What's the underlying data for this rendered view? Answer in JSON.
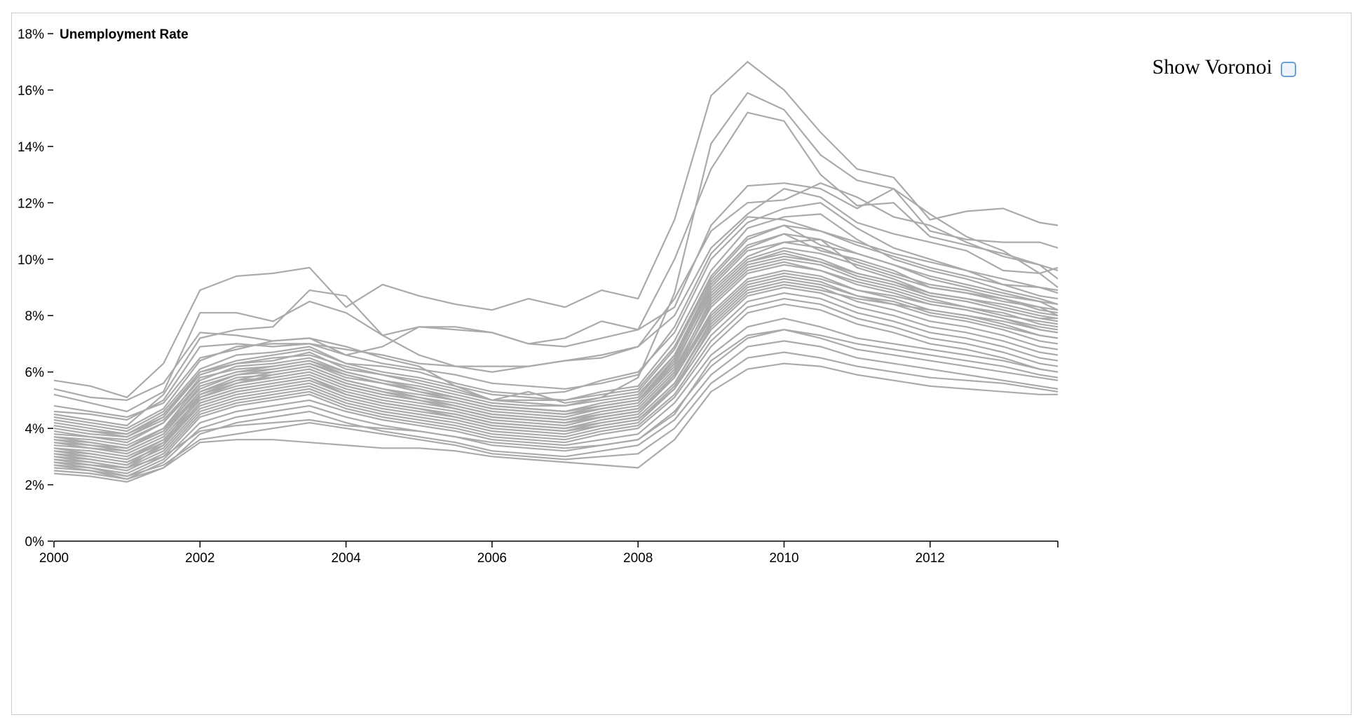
{
  "colors": {
    "line": "#aaaaaa",
    "axis": "#000000",
    "frame": "#cccccc",
    "checkbox_border": "#6a9fd8"
  },
  "controls": {
    "voronoi_label": "Show Voronoi",
    "voronoi_checked": false
  },
  "chart_data": {
    "type": "line",
    "title": "Unemployment Rate",
    "xlabel": "",
    "ylabel": "Unemployment Rate",
    "xlim": [
      2000,
      2013.75
    ],
    "ylim": [
      0,
      18
    ],
    "x_ticks": [
      "2000",
      "2002",
      "2004",
      "2006",
      "2008",
      "2010",
      "2012"
    ],
    "y_ticks": [
      "0%",
      "2%",
      "4%",
      "6%",
      "8%",
      "10%",
      "12%",
      "14%",
      "16%",
      "18%"
    ],
    "grid": false,
    "legend": "none",
    "x": [
      2000.0,
      2000.5,
      2001.0,
      2001.5,
      2002.0,
      2002.5,
      2003.0,
      2003.5,
      2004.0,
      2004.5,
      2005.0,
      2005.5,
      2006.0,
      2006.5,
      2007.0,
      2007.5,
      2008.0,
      2008.5,
      2009.0,
      2009.5,
      2010.0,
      2010.5,
      2011.0,
      2011.5,
      2012.0,
      2012.5,
      2013.0,
      2013.5,
      2013.75
    ],
    "series": [
      {
        "values": [
          5.7,
          5.5,
          5.1,
          6.3,
          8.9,
          9.4,
          9.5,
          9.7,
          8.3,
          9.1,
          8.7,
          8.4,
          8.2,
          8.6,
          8.3,
          8.9,
          8.6,
          11.4,
          15.8,
          17.0,
          16.0,
          14.5,
          13.2,
          12.9,
          11.4,
          11.7,
          11.8,
          11.3,
          11.2
        ]
      },
      {
        "values": [
          5.4,
          5.1,
          5.0,
          5.6,
          7.4,
          7.3,
          7.1,
          7.2,
          6.9,
          6.5,
          6.2,
          5.5,
          5.0,
          5.3,
          4.9,
          5.1,
          5.8,
          8.8,
          14.1,
          15.9,
          15.3,
          13.7,
          12.8,
          12.5,
          11.0,
          10.7,
          10.6,
          10.6,
          10.4
        ]
      },
      {
        "values": [
          5.2,
          4.9,
          4.6,
          5.3,
          8.1,
          8.1,
          7.8,
          8.5,
          8.1,
          7.3,
          7.6,
          7.5,
          7.4,
          7.0,
          7.2,
          7.8,
          7.5,
          10.0,
          13.2,
          15.2,
          14.9,
          13.0,
          11.9,
          12.0,
          10.8,
          10.5,
          10.2,
          9.8,
          9.6
        ]
      },
      {
        "values": [
          4.8,
          4.6,
          4.4,
          4.9,
          6.5,
          6.8,
          7.1,
          7.2,
          6.6,
          6.9,
          7.6,
          7.6,
          7.4,
          7.0,
          6.9,
          7.2,
          7.5,
          8.3,
          11.2,
          12.6,
          12.7,
          12.5,
          11.8,
          12.5,
          11.6,
          10.8,
          10.3,
          9.5,
          9.7
        ]
      },
      {
        "values": [
          4.5,
          4.3,
          4.1,
          5.2,
          7.2,
          7.5,
          7.6,
          8.9,
          8.7,
          7.3,
          6.6,
          6.2,
          6.0,
          6.2,
          6.4,
          6.6,
          6.9,
          8.6,
          11.0,
          12.0,
          12.1,
          12.7,
          12.2,
          11.5,
          11.2,
          10.6,
          10.1,
          9.8,
          9.3
        ]
      },
      {
        "values": [
          4.4,
          4.2,
          4.0,
          4.7,
          6.4,
          6.9,
          7.0,
          7.0,
          6.8,
          6.6,
          6.3,
          6.2,
          6.2,
          6.2,
          6.4,
          6.5,
          6.9,
          8.0,
          10.4,
          11.6,
          12.5,
          12.2,
          11.3,
          10.9,
          10.6,
          10.3,
          9.6,
          9.5,
          9.0
        ]
      },
      {
        "values": [
          4.3,
          4.1,
          3.9,
          4.6,
          6.1,
          6.6,
          6.7,
          6.9,
          6.3,
          6.2,
          6.0,
          5.6,
          5.3,
          5.2,
          5.3,
          5.7,
          6.0,
          7.4,
          10.0,
          11.3,
          11.8,
          12.0,
          11.1,
          10.4,
          10.0,
          9.6,
          9.1,
          9.0,
          8.8
        ]
      },
      {
        "values": [
          4.1,
          3.9,
          3.8,
          4.4,
          5.9,
          6.3,
          6.4,
          6.7,
          6.1,
          5.9,
          5.7,
          5.4,
          5.0,
          5.0,
          5.0,
          5.3,
          5.5,
          7.1,
          9.6,
          11.1,
          11.5,
          11.6,
          10.7,
          10.0,
          9.6,
          9.3,
          8.9,
          8.6,
          8.4
        ]
      },
      {
        "values": [
          4.0,
          3.8,
          3.7,
          4.3,
          5.7,
          6.2,
          6.3,
          6.5,
          6.0,
          5.7,
          5.5,
          5.2,
          4.9,
          4.8,
          4.8,
          5.1,
          5.3,
          6.8,
          9.3,
          10.7,
          11.2,
          10.5,
          10.2,
          9.8,
          9.3,
          9.0,
          8.7,
          8.5,
          8.2
        ]
      },
      {
        "values": [
          3.8,
          3.7,
          3.5,
          4.2,
          5.6,
          6.0,
          6.1,
          6.3,
          5.8,
          5.6,
          5.3,
          5.1,
          4.8,
          4.7,
          4.6,
          4.9,
          5.1,
          6.6,
          9.1,
          10.4,
          10.9,
          10.3,
          10.0,
          9.6,
          9.0,
          8.8,
          8.5,
          8.3,
          8.0
        ]
      },
      {
        "values": [
          3.7,
          3.6,
          3.4,
          4.0,
          5.4,
          5.9,
          6.0,
          6.2,
          5.7,
          5.4,
          5.2,
          5.0,
          4.7,
          4.6,
          4.5,
          4.8,
          5.0,
          6.4,
          8.9,
          10.1,
          10.6,
          10.7,
          9.7,
          9.3,
          8.8,
          8.6,
          8.3,
          8.0,
          7.9
        ]
      },
      {
        "values": [
          3.6,
          3.5,
          3.3,
          3.9,
          5.3,
          5.8,
          5.9,
          6.1,
          5.6,
          5.3,
          5.1,
          4.9,
          4.6,
          4.5,
          4.4,
          4.7,
          4.9,
          6.3,
          8.7,
          9.9,
          10.3,
          10.0,
          9.5,
          9.2,
          8.7,
          8.5,
          8.2,
          7.9,
          7.8
        ]
      },
      {
        "values": [
          3.5,
          3.4,
          3.2,
          3.8,
          5.2,
          5.6,
          5.8,
          6.0,
          5.5,
          5.2,
          5.0,
          4.8,
          4.5,
          4.4,
          4.3,
          4.6,
          4.8,
          6.1,
          8.5,
          9.7,
          10.0,
          9.8,
          9.3,
          9.0,
          8.6,
          8.3,
          8.1,
          7.7,
          7.6
        ]
      },
      {
        "values": [
          3.4,
          3.3,
          3.1,
          3.7,
          5.1,
          5.5,
          5.7,
          5.9,
          5.4,
          5.1,
          4.9,
          4.7,
          4.4,
          4.3,
          4.2,
          4.5,
          4.7,
          6.0,
          8.3,
          9.5,
          9.8,
          9.6,
          9.1,
          8.8,
          8.4,
          8.2,
          7.9,
          7.5,
          7.4
        ]
      },
      {
        "values": [
          3.3,
          3.2,
          3.0,
          3.6,
          5.0,
          5.4,
          5.6,
          5.8,
          5.3,
          5.0,
          4.8,
          4.6,
          4.3,
          4.2,
          4.1,
          4.4,
          4.6,
          5.9,
          8.1,
          9.3,
          9.6,
          9.4,
          8.9,
          8.6,
          8.2,
          8.0,
          7.7,
          7.3,
          7.2
        ]
      },
      {
        "values": [
          3.2,
          3.1,
          2.9,
          3.5,
          4.9,
          5.3,
          5.5,
          5.7,
          5.2,
          4.9,
          4.7,
          4.5,
          4.2,
          4.1,
          4.0,
          4.3,
          4.5,
          5.8,
          7.9,
          9.1,
          9.4,
          9.2,
          8.7,
          8.4,
          8.0,
          7.8,
          7.5,
          7.1,
          7.0
        ]
      },
      {
        "values": [
          3.1,
          3.0,
          2.8,
          3.4,
          4.8,
          5.2,
          5.4,
          5.6,
          5.1,
          4.8,
          4.6,
          4.4,
          4.1,
          4.0,
          3.9,
          4.2,
          4.4,
          5.6,
          7.7,
          8.9,
          9.2,
          9.0,
          8.5,
          8.2,
          7.8,
          7.6,
          7.3,
          6.9,
          6.8
        ]
      },
      {
        "values": [
          3.0,
          2.9,
          2.7,
          3.3,
          4.7,
          5.1,
          5.3,
          5.5,
          5.0,
          4.7,
          4.5,
          4.3,
          4.0,
          3.9,
          3.8,
          4.1,
          4.3,
          5.5,
          7.5,
          8.7,
          9.0,
          8.8,
          8.3,
          8.0,
          7.6,
          7.4,
          7.1,
          6.7,
          6.6
        ]
      },
      {
        "values": [
          2.9,
          2.8,
          2.6,
          3.2,
          4.6,
          5.0,
          5.2,
          5.4,
          4.9,
          4.6,
          4.4,
          4.2,
          3.9,
          3.8,
          3.7,
          4.0,
          4.2,
          5.4,
          7.3,
          8.5,
          8.8,
          8.6,
          8.1,
          7.8,
          7.4,
          7.2,
          6.9,
          6.5,
          6.4
        ]
      },
      {
        "values": [
          2.8,
          2.7,
          2.5,
          3.1,
          4.5,
          4.9,
          5.1,
          5.3,
          4.8,
          4.5,
          4.3,
          4.1,
          3.8,
          3.7,
          3.6,
          3.9,
          4.1,
          5.2,
          7.1,
          8.3,
          8.6,
          8.4,
          7.9,
          7.6,
          7.2,
          7.0,
          6.7,
          6.3,
          6.2
        ]
      },
      {
        "values": [
          2.7,
          2.6,
          2.4,
          3.0,
          4.4,
          4.8,
          5.0,
          5.2,
          4.7,
          4.4,
          4.2,
          4.0,
          3.7,
          3.6,
          3.5,
          3.8,
          4.0,
          5.1,
          6.9,
          8.1,
          8.4,
          8.2,
          7.7,
          7.4,
          7.0,
          6.8,
          6.5,
          6.1,
          6.0
        ]
      },
      {
        "values": [
          2.9,
          2.7,
          2.6,
          3.4,
          5.1,
          5.6,
          5.9,
          6.1,
          5.6,
          5.3,
          5.0,
          4.7,
          4.4,
          4.3,
          4.2,
          4.4,
          4.6,
          5.9,
          8.4,
          9.6,
          9.9,
          9.6,
          9.2,
          8.9,
          8.5,
          8.3,
          8.0,
          7.8,
          7.7
        ]
      },
      {
        "values": [
          3.1,
          2.9,
          2.7,
          3.5,
          5.2,
          5.7,
          6.0,
          6.2,
          5.7,
          5.4,
          5.1,
          4.8,
          4.5,
          4.4,
          4.3,
          4.5,
          4.7,
          6.0,
          8.6,
          9.8,
          10.1,
          9.9,
          9.4,
          9.1,
          8.7,
          8.5,
          8.2,
          7.9,
          7.9
        ]
      },
      {
        "values": [
          3.6,
          3.4,
          3.3,
          3.9,
          5.5,
          5.9,
          6.1,
          6.3,
          5.9,
          5.6,
          5.3,
          5.0,
          4.7,
          4.6,
          4.5,
          4.7,
          4.9,
          6.2,
          8.8,
          10.0,
          10.4,
          10.2,
          9.8,
          9.4,
          9.0,
          8.8,
          8.6,
          8.2,
          8.1
        ]
      },
      {
        "values": [
          4.2,
          4.0,
          3.8,
          4.5,
          6.0,
          6.4,
          6.6,
          6.8,
          6.3,
          6.0,
          5.8,
          5.5,
          5.2,
          5.1,
          5.0,
          5.2,
          5.4,
          6.9,
          9.4,
          10.8,
          11.2,
          11.0,
          10.5,
          10.1,
          9.7,
          9.4,
          9.1,
          8.7,
          8.6
        ]
      },
      {
        "values": [
          3.9,
          3.7,
          3.6,
          4.2,
          5.8,
          6.1,
          6.2,
          6.4,
          6.0,
          5.7,
          5.4,
          5.1,
          4.8,
          4.7,
          4.6,
          4.8,
          5.0,
          6.5,
          9.0,
          10.3,
          10.6,
          10.4,
          9.9,
          9.5,
          9.1,
          8.9,
          8.6,
          8.3,
          8.2
        ]
      },
      {
        "values": [
          2.6,
          2.5,
          2.3,
          2.9,
          4.2,
          4.6,
          4.8,
          5.0,
          4.6,
          4.3,
          4.1,
          3.9,
          3.6,
          3.5,
          3.4,
          3.6,
          3.8,
          4.9,
          6.6,
          7.6,
          7.9,
          7.6,
          7.2,
          7.0,
          6.8,
          6.6,
          6.4,
          6.1,
          6.0
        ]
      },
      {
        "values": [
          2.5,
          2.4,
          2.2,
          2.8,
          4.0,
          4.4,
          4.6,
          4.8,
          4.4,
          4.1,
          3.9,
          3.7,
          3.4,
          3.3,
          3.2,
          3.4,
          3.6,
          4.6,
          6.2,
          7.2,
          7.5,
          7.2,
          6.8,
          6.6,
          6.4,
          6.2,
          6.0,
          5.8,
          5.7
        ]
      },
      {
        "values": [
          2.4,
          2.3,
          2.1,
          2.6,
          3.8,
          4.2,
          4.4,
          4.6,
          4.2,
          3.9,
          3.7,
          3.5,
          3.2,
          3.1,
          3.0,
          3.2,
          3.4,
          4.3,
          5.9,
          6.9,
          7.1,
          6.9,
          6.5,
          6.3,
          6.1,
          5.9,
          5.7,
          5.5,
          5.4
        ]
      },
      {
        "values": [
          2.8,
          2.6,
          2.3,
          2.7,
          3.6,
          3.8,
          4.0,
          4.2,
          4.0,
          3.8,
          3.6,
          3.4,
          3.1,
          3.0,
          2.9,
          3.0,
          3.1,
          4.0,
          5.6,
          6.5,
          6.7,
          6.5,
          6.2,
          6.0,
          5.8,
          5.7,
          5.6,
          5.4,
          5.3
        ]
      },
      {
        "values": [
          2.7,
          2.5,
          2.2,
          2.6,
          3.5,
          3.6,
          3.6,
          3.5,
          3.4,
          3.3,
          3.3,
          3.2,
          3.0,
          2.9,
          2.8,
          2.7,
          2.6,
          3.6,
          5.3,
          6.1,
          6.3,
          6.2,
          5.9,
          5.7,
          5.5,
          5.4,
          5.3,
          5.2,
          5.2
        ]
      },
      {
        "values": [
          3.0,
          2.8,
          2.6,
          3.0,
          3.9,
          4.1,
          4.2,
          4.3,
          4.1,
          4.0,
          3.9,
          3.7,
          3.5,
          3.4,
          3.3,
          3.4,
          3.6,
          4.5,
          6.4,
          7.3,
          7.5,
          7.3,
          7.0,
          6.8,
          6.6,
          6.4,
          6.2,
          5.9,
          5.8
        ]
      },
      {
        "values": [
          3.3,
          3.1,
          2.9,
          3.6,
          5.0,
          5.4,
          5.6,
          5.8,
          5.2,
          4.9,
          4.7,
          4.4,
          4.1,
          4.0,
          3.9,
          4.1,
          4.3,
          5.4,
          7.6,
          8.8,
          9.1,
          8.9,
          8.6,
          8.4,
          8.2,
          8.0,
          7.8,
          7.5,
          7.4
        ]
      },
      {
        "values": [
          3.5,
          3.3,
          3.2,
          3.8,
          5.3,
          5.7,
          5.8,
          6.0,
          5.5,
          5.2,
          5.0,
          4.7,
          4.4,
          4.3,
          4.2,
          4.4,
          4.6,
          5.8,
          8.0,
          9.2,
          9.5,
          9.3,
          8.9,
          8.7,
          8.4,
          8.2,
          7.9,
          7.6,
          7.5
        ]
      },
      {
        "values": [
          4.6,
          4.5,
          4.3,
          5.0,
          6.9,
          7.0,
          6.9,
          7.0,
          6.6,
          6.3,
          6.1,
          5.9,
          5.6,
          5.5,
          5.4,
          5.6,
          5.9,
          7.6,
          10.2,
          11.5,
          11.4,
          11.0,
          10.6,
          10.2,
          9.9,
          9.6,
          9.3,
          9.0,
          8.9
        ]
      },
      {
        "values": [
          3.7,
          3.5,
          3.3,
          4.0,
          5.6,
          6.0,
          6.2,
          6.4,
          5.9,
          5.6,
          5.4,
          5.1,
          4.8,
          4.7,
          4.6,
          4.8,
          5.0,
          6.3,
          8.7,
          9.9,
          10.2,
          9.9,
          9.5,
          9.2,
          8.8,
          8.6,
          8.4,
          8.1,
          8.0
        ]
      },
      {
        "values": [
          4.1,
          3.9,
          3.7,
          4.4,
          6.0,
          6.3,
          6.5,
          6.6,
          6.2,
          5.9,
          5.6,
          5.3,
          5.0,
          4.9,
          4.8,
          5.0,
          5.2,
          6.6,
          9.2,
          10.5,
          10.9,
          10.7,
          10.2,
          9.8,
          9.4,
          9.1,
          8.8,
          8.5,
          8.4
        ]
      },
      {
        "values": [
          3.2,
          3.0,
          2.8,
          3.4,
          4.9,
          5.3,
          5.5,
          5.7,
          5.2,
          4.9,
          4.7,
          4.5,
          4.2,
          4.1,
          4.0,
          4.2,
          4.4,
          5.6,
          7.8,
          9.0,
          9.3,
          9.1,
          8.7,
          8.5,
          8.1,
          7.9,
          7.6,
          7.3,
          7.2
        ]
      }
    ]
  }
}
